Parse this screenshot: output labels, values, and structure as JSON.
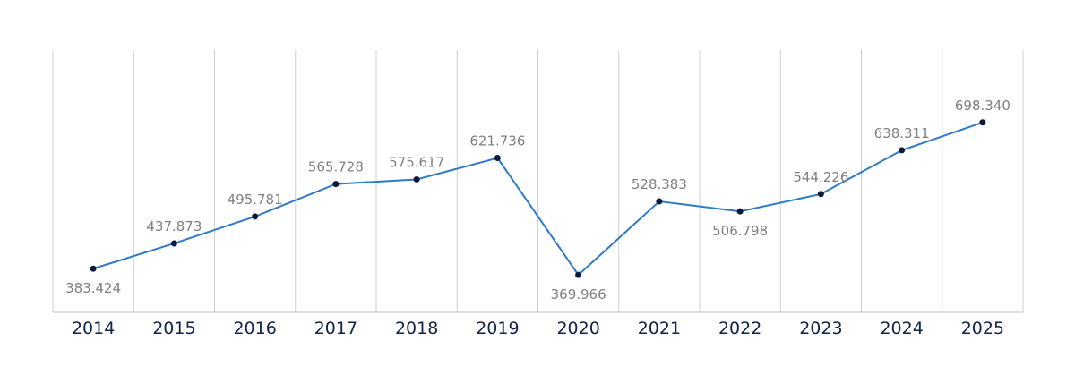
{
  "chart_data": {
    "type": "line",
    "title": "",
    "xlabel": "",
    "ylabel": "",
    "categories": [
      "2014",
      "2015",
      "2016",
      "2017",
      "2018",
      "2019",
      "2020",
      "2021",
      "2022",
      "2023",
      "2024",
      "2025"
    ],
    "series": [
      {
        "name": "",
        "values": [
          383.424,
          437.873,
          495.781,
          565.728,
          575.617,
          621.736,
          369.966,
          528.383,
          506.798,
          544.226,
          638.311,
          698.34
        ],
        "labels": [
          "383.424",
          "437.873",
          "495.781",
          "565.728",
          "575.617",
          "621.736",
          "369.966",
          "528.383",
          "506.798",
          "544.226",
          "638.311",
          "698.340"
        ],
        "color": "#2f7ac6",
        "marker_color": "#0b1a3a"
      }
    ],
    "label_color": "#808080",
    "tick_color": "#132448",
    "grid": true,
    "legend": "none"
  }
}
